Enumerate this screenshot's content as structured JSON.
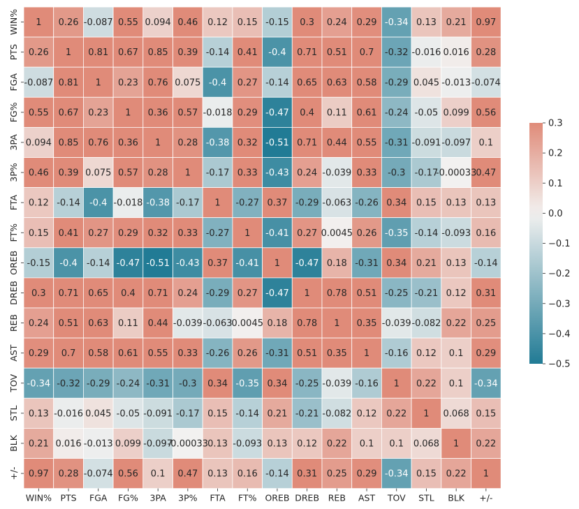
{
  "chart_data": {
    "type": "heatmap",
    "title": "",
    "xlabel": "",
    "ylabel": "",
    "row_labels": [
      "WIN%",
      "PTS",
      "FGA",
      "FG%",
      "3PA",
      "3P%",
      "FTA",
      "FT%",
      "OREB",
      "DREB",
      "REB",
      "AST",
      "TOV",
      "STL",
      "BLK",
      "+/-"
    ],
    "col_labels": [
      "WIN%",
      "PTS",
      "FGA",
      "FG%",
      "3PA",
      "3P%",
      "FTA",
      "FT%",
      "OREB",
      "DREB",
      "REB",
      "AST",
      "TOV",
      "STL",
      "BLK",
      "+/-"
    ],
    "cell_labels": [
      [
        "1",
        "0.26",
        "-0.087",
        "0.55",
        "0.094",
        "0.46",
        "0.12",
        "0.15",
        "-0.15",
        "0.3",
        "0.24",
        "0.29",
        "-0.34",
        "0.13",
        "0.21",
        "0.97"
      ],
      [
        "0.26",
        "1",
        "0.81",
        "0.67",
        "0.85",
        "0.39",
        "-0.14",
        "0.41",
        "-0.4",
        "0.71",
        "0.51",
        "0.7",
        "-0.32",
        "-0.016",
        "0.016",
        "0.28"
      ],
      [
        "-0.087",
        "0.81",
        "1",
        "0.23",
        "0.76",
        "0.075",
        "-0.4",
        "0.27",
        "-0.14",
        "0.65",
        "0.63",
        "0.58",
        "-0.29",
        "0.045",
        "-0.013",
        "-0.074"
      ],
      [
        "0.55",
        "0.67",
        "0.23",
        "1",
        "0.36",
        "0.57",
        "-0.018",
        "0.29",
        "-0.47",
        "0.4",
        "0.11",
        "0.61",
        "-0.24",
        "-0.05",
        "0.099",
        "0.56"
      ],
      [
        "0.094",
        "0.85",
        "0.76",
        "0.36",
        "1",
        "0.28",
        "-0.38",
        "0.32",
        "-0.51",
        "0.71",
        "0.44",
        "0.55",
        "-0.31",
        "-0.091",
        "-0.097",
        "0.1"
      ],
      [
        "0.46",
        "0.39",
        "0.075",
        "0.57",
        "0.28",
        "1",
        "-0.17",
        "0.33",
        "-0.43",
        "0.24",
        "-0.039",
        "0.33",
        "-0.3",
        "-0.17",
        "-0.00033",
        "0.47"
      ],
      [
        "0.12",
        "-0.14",
        "-0.4",
        "-0.018",
        "-0.38",
        "-0.17",
        "1",
        "-0.27",
        "0.37",
        "-0.29",
        "-0.063",
        "-0.26",
        "0.34",
        "0.15",
        "0.13",
        "0.13"
      ],
      [
        "0.15",
        "0.41",
        "0.27",
        "0.29",
        "0.32",
        "0.33",
        "-0.27",
        "1",
        "-0.41",
        "0.27",
        "0.0045",
        "0.26",
        "-0.35",
        "-0.14",
        "-0.093",
        "0.16"
      ],
      [
        "-0.15",
        "-0.4",
        "-0.14",
        "-0.47",
        "-0.51",
        "-0.43",
        "0.37",
        "-0.41",
        "1",
        "-0.47",
        "0.18",
        "-0.31",
        "0.34",
        "0.21",
        "0.13",
        "-0.14"
      ],
      [
        "0.3",
        "0.71",
        "0.65",
        "0.4",
        "0.71",
        "0.24",
        "-0.29",
        "0.27",
        "-0.47",
        "1",
        "0.78",
        "0.51",
        "-0.25",
        "-0.21",
        "0.12",
        "0.31"
      ],
      [
        "0.24",
        "0.51",
        "0.63",
        "0.11",
        "0.44",
        "-0.039",
        "-0.063",
        "0.0045",
        "0.18",
        "0.78",
        "1",
        "0.35",
        "-0.039",
        "-0.082",
        "0.22",
        "0.25"
      ],
      [
        "0.29",
        "0.7",
        "0.58",
        "0.61",
        "0.55",
        "0.33",
        "-0.26",
        "0.26",
        "-0.31",
        "0.51",
        "0.35",
        "1",
        "-0.16",
        "0.12",
        "0.1",
        "0.29"
      ],
      [
        "-0.34",
        "-0.32",
        "-0.29",
        "-0.24",
        "-0.31",
        "-0.3",
        "0.34",
        "-0.35",
        "0.34",
        "-0.25",
        "-0.039",
        "-0.16",
        "1",
        "0.22",
        "0.1",
        "-0.34"
      ],
      [
        "0.13",
        "-0.016",
        "0.045",
        "-0.05",
        "-0.091",
        "-0.17",
        "0.15",
        "-0.14",
        "0.21",
        "-0.21",
        "-0.082",
        "0.12",
        "0.22",
        "1",
        "0.068",
        "0.15"
      ],
      [
        "0.21",
        "0.016",
        "-0.013",
        "0.099",
        "-0.097",
        "-0.00033",
        "0.13",
        "-0.093",
        "0.13",
        "0.12",
        "0.22",
        "0.1",
        "0.1",
        "0.068",
        "1",
        "0.22"
      ],
      [
        "0.97",
        "0.28",
        "-0.074",
        "0.56",
        "0.1",
        "0.47",
        "0.13",
        "0.16",
        "-0.14",
        "0.31",
        "0.25",
        "0.29",
        "-0.34",
        "0.15",
        "0.22",
        "1"
      ]
    ],
    "color_range": [
      -0.5,
      0.3
    ],
    "colorbar_ticks": [
      "0.3",
      "0.2",
      "0.1",
      "0.0",
      "−0.1",
      "−0.2",
      "−0.3",
      "−0.4",
      "−0.5"
    ],
    "colormap": {
      "low": "#217b95",
      "mid": "#f2f1f0",
      "high": "#e08b79"
    },
    "legend": "right",
    "grid": false
  }
}
